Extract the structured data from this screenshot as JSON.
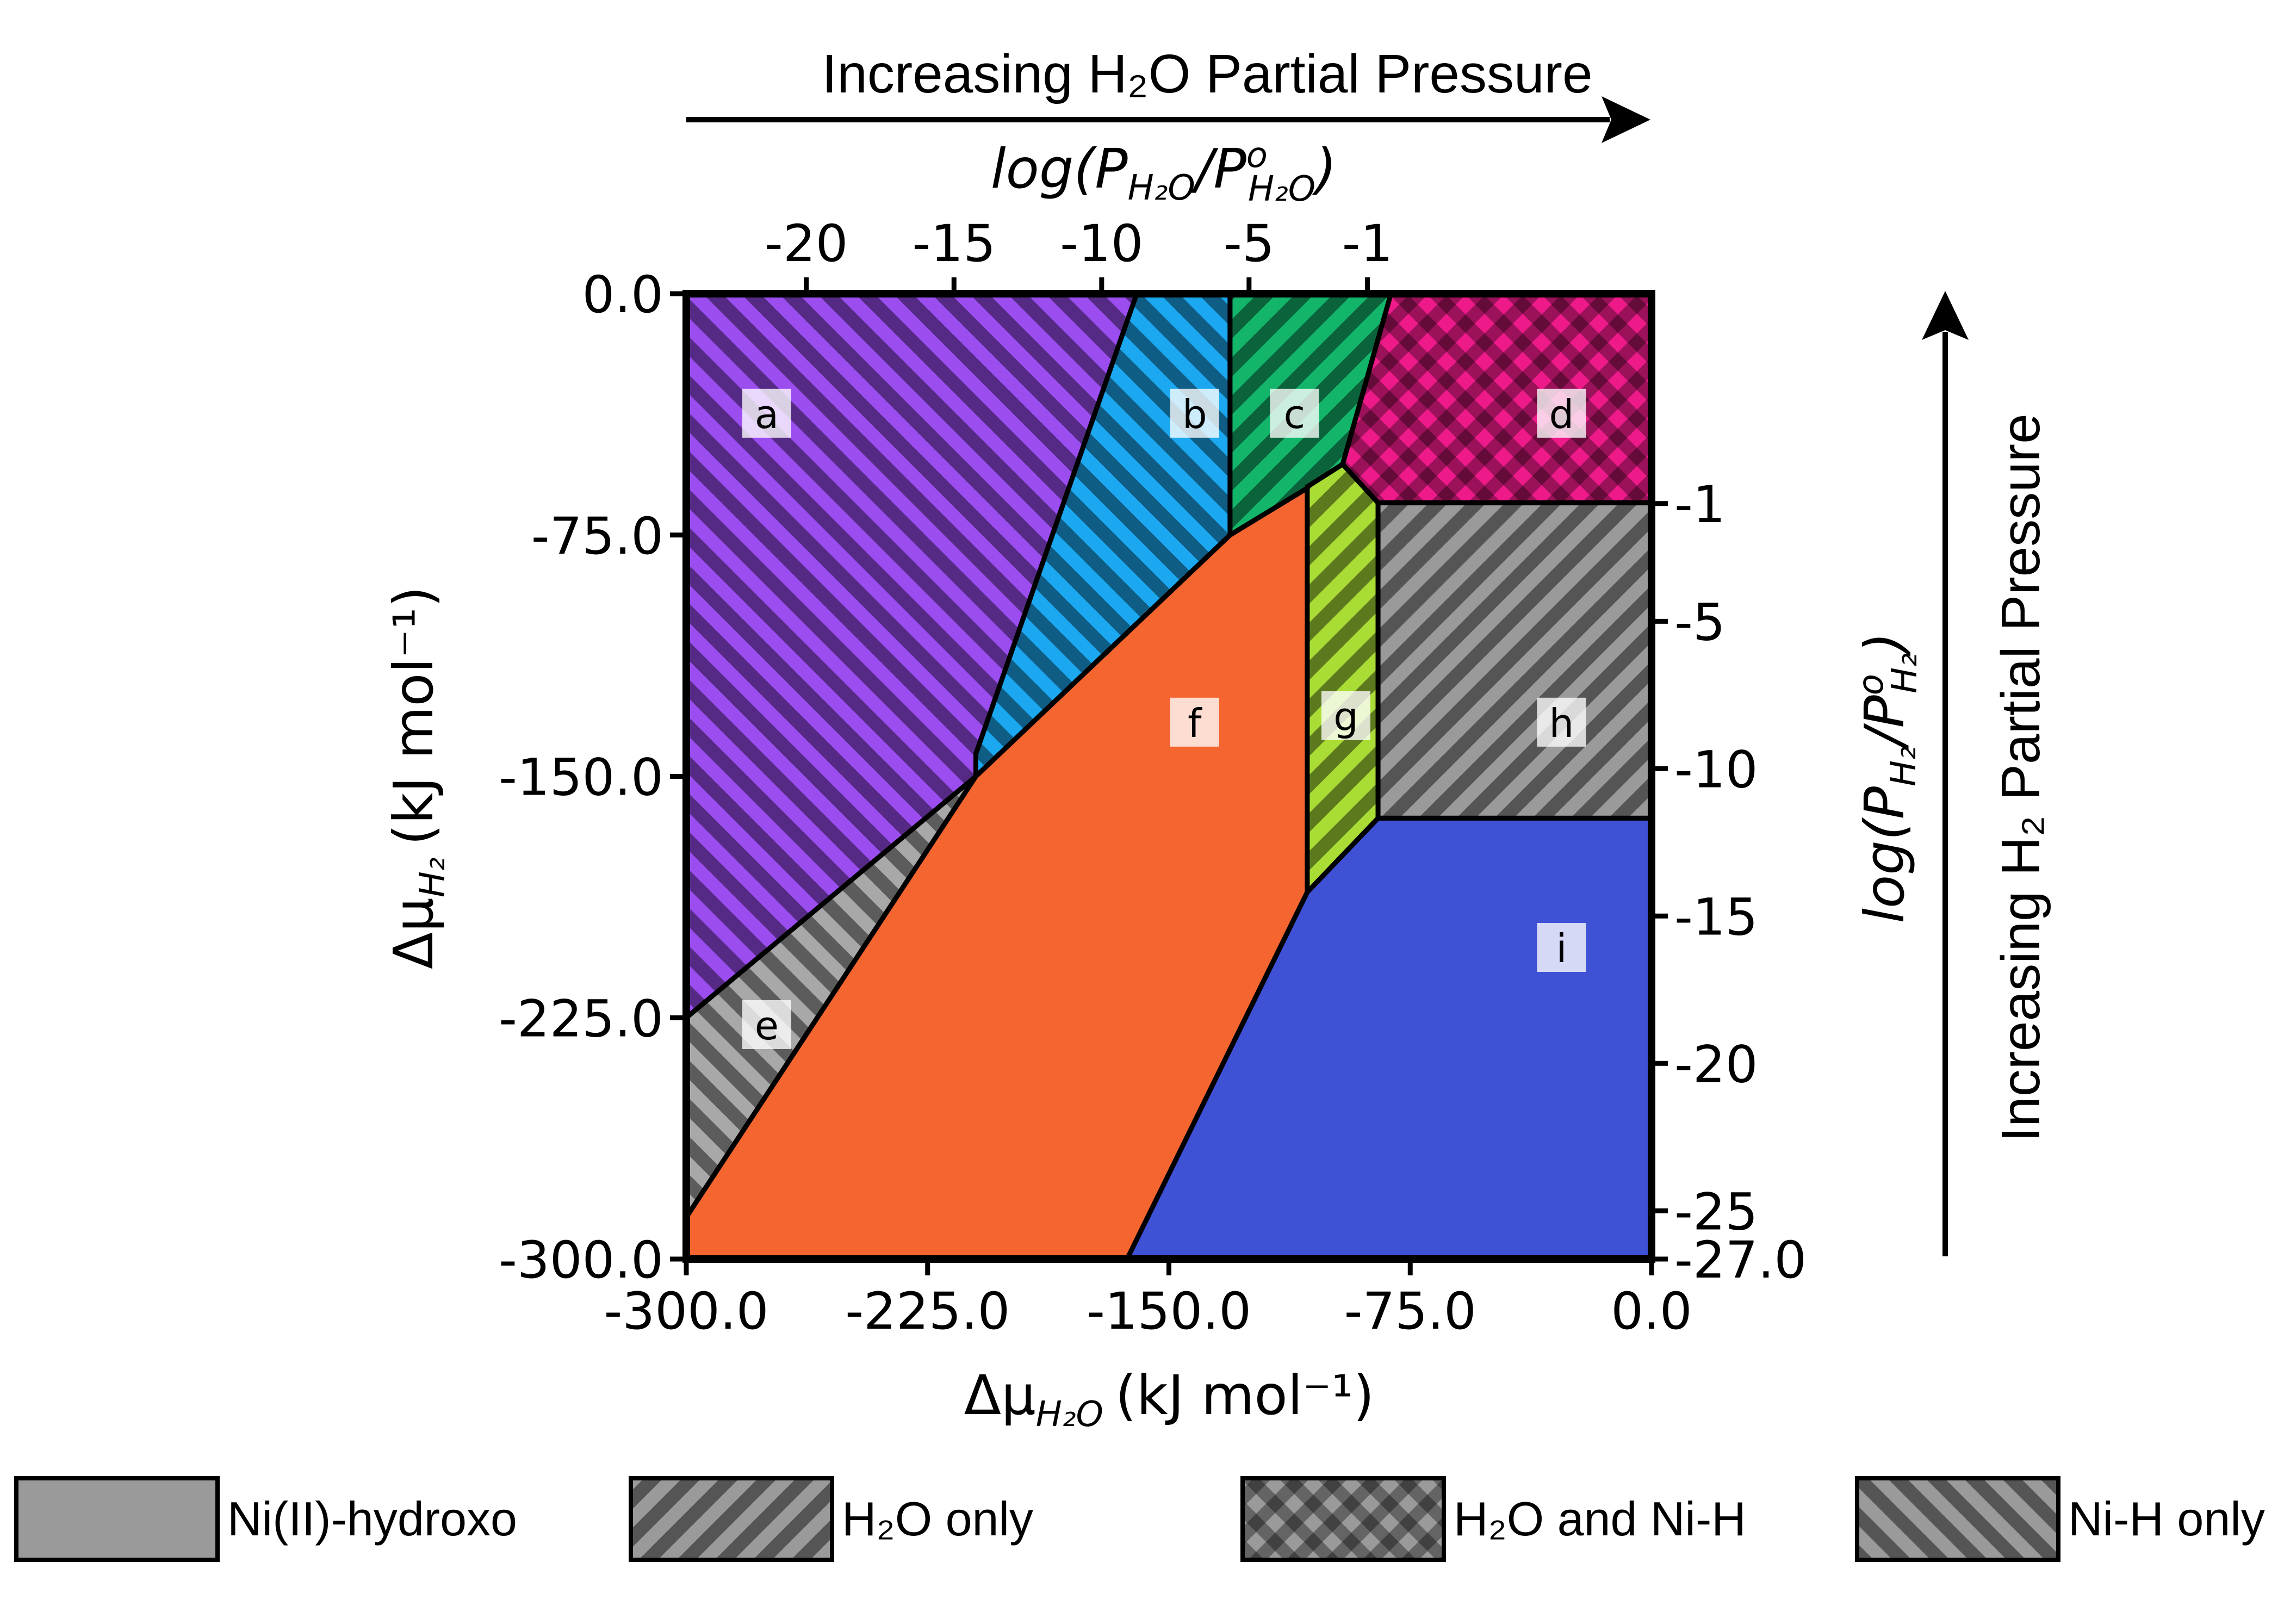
{
  "chart_data": {
    "type": "phase_diagram",
    "header_top": "Increasing H₂O Partial Pressure",
    "header_right": "Increasing H₂ Partial Pressure",
    "x_axis": {
      "quantity": "Δμ",
      "subscript": "H₂O",
      "units": "(kJ mol⁻¹)",
      "range": [
        -300,
        0
      ],
      "ticks": [
        -300,
        -225,
        -150,
        -75,
        0
      ],
      "tick_labels": [
        "-300.0",
        "-225.0",
        "-150.0",
        "-75.0",
        "0.0"
      ]
    },
    "y_axis": {
      "quantity": "Δμ",
      "subscript": "H₂",
      "units": "(kJ mol⁻¹)",
      "range": [
        -300,
        0
      ],
      "ticks": [
        -300,
        -225,
        -150,
        -75,
        0
      ],
      "tick_labels": [
        "-300.0",
        "-225.0",
        "-150.0",
        "-75.0",
        "0.0"
      ]
    },
    "top_axis": {
      "label_prefix": "log(P",
      "label_sub1": "H₂O",
      "label_mid": "/P",
      "label_sup": "o",
      "label_sub2": "H₂O",
      "label_suffix": ")",
      "ticks": [
        {
          "value": -20,
          "at_x": -262.7
        },
        {
          "value": -15,
          "at_x": -216.8
        },
        {
          "value": -10,
          "at_x": -170.9
        },
        {
          "value": -5,
          "at_x": -125.1
        },
        {
          "value": -1,
          "at_x": -88.3
        }
      ],
      "tick_labels": [
        "-20",
        "-15",
        "-10",
        "-5",
        "-1"
      ]
    },
    "right_axis": {
      "label_prefix": "log(P",
      "label_sub1": "H₂",
      "label_mid": "/P",
      "label_sup": "o",
      "label_sub2": "H₂",
      "label_suffix": ")",
      "ticks": [
        {
          "value": -1,
          "at_y": -65.2
        },
        {
          "value": -5,
          "at_y": -101.8
        },
        {
          "value": -10,
          "at_y": -147.6
        },
        {
          "value": -15,
          "at_y": -193.4
        },
        {
          "value": -20,
          "at_y": -239.2
        },
        {
          "value": -25,
          "at_y": -285.0
        },
        {
          "value": -27,
          "at_y": -300.0
        }
      ],
      "tick_labels": [
        "-1",
        "-5",
        "-10",
        "-15",
        "-20",
        "-25",
        "-27.0"
      ]
    },
    "regions": [
      {
        "label": "a",
        "color": "#9b4df0",
        "pattern": "ni-h-only",
        "label_at": [
          -275,
          -38
        ],
        "polygon": [
          [
            -300,
            0
          ],
          [
            -160,
            0
          ],
          [
            -210,
            -143
          ],
          [
            -210,
            -150
          ],
          [
            -300,
            -225
          ]
        ]
      },
      {
        "label": "b",
        "color": "#1ba8f0",
        "pattern": "ni-h-only",
        "label_at": [
          -142,
          -38
        ],
        "polygon": [
          [
            -160,
            0
          ],
          [
            -131,
            0
          ],
          [
            -131,
            -75
          ],
          [
            -210,
            -150
          ],
          [
            -210,
            -143
          ]
        ]
      },
      {
        "label": "c",
        "color": "#12b56a",
        "pattern": "h2o-only",
        "label_at": [
          -111,
          -38
        ],
        "polygon": [
          [
            -131,
            0
          ],
          [
            -81,
            0
          ],
          [
            -96,
            -53
          ],
          [
            -103,
            -58
          ],
          [
            -131,
            -75
          ]
        ]
      },
      {
        "label": "d",
        "color": "#ee1a8a",
        "pattern": "h2o-and-ni-h",
        "label_at": [
          -28,
          -38
        ],
        "polygon": [
          [
            -81,
            0
          ],
          [
            0,
            0
          ],
          [
            0,
            -65
          ],
          [
            -85,
            -65
          ],
          [
            -96,
            -53
          ]
        ]
      },
      {
        "label": "e",
        "color": "#a8a8a8",
        "pattern": "ni-h-only",
        "label_at": [
          -275,
          -228
        ],
        "polygon": [
          [
            -300,
            -225
          ],
          [
            -210,
            -150
          ],
          [
            -300,
            -287
          ]
        ]
      },
      {
        "label": "f",
        "color": "#f5652f",
        "pattern": "solid",
        "label_at": [
          -142,
          -134
        ],
        "polygon": [
          [
            -131,
            -75
          ],
          [
            -103,
            -58
          ],
          [
            -107,
            -60
          ],
          [
            -107,
            -186
          ],
          [
            -163,
            -300
          ],
          [
            -300,
            -300
          ],
          [
            -300,
            -287
          ],
          [
            -210,
            -150
          ]
        ]
      },
      {
        "label": "g",
        "color": "#aadc36",
        "pattern": "h2o-only",
        "label_at": [
          -95,
          -132
        ],
        "polygon": [
          [
            -107,
            -60
          ],
          [
            -96,
            -53
          ],
          [
            -85,
            -65
          ],
          [
            -85,
            -163
          ],
          [
            -107,
            -186
          ]
        ]
      },
      {
        "label": "h",
        "color": "#9a9a9a",
        "pattern": "h2o-only",
        "label_at": [
          -28,
          -134
        ],
        "polygon": [
          [
            -85,
            -65
          ],
          [
            0,
            -65
          ],
          [
            0,
            -163
          ],
          [
            -85,
            -163
          ]
        ]
      },
      {
        "label": "i",
        "color": "#3f51d5",
        "pattern": "solid",
        "label_at": [
          -28,
          -204
        ],
        "polygon": [
          [
            -85,
            -163
          ],
          [
            0,
            -163
          ],
          [
            0,
            -300
          ],
          [
            -163,
            -300
          ],
          [
            -107,
            -186
          ]
        ]
      }
    ],
    "legend": [
      {
        "label": "Ni(II)-hydroxo",
        "pattern": "solid"
      },
      {
        "label": "H₂O only",
        "pattern": "h2o-only"
      },
      {
        "label": "H₂O and Ni-H",
        "pattern": "h2o-and-ni-h"
      },
      {
        "label": "Ni-H only",
        "pattern": "ni-h-only"
      }
    ],
    "legend_color": "#9a9a9a",
    "grid": false
  }
}
